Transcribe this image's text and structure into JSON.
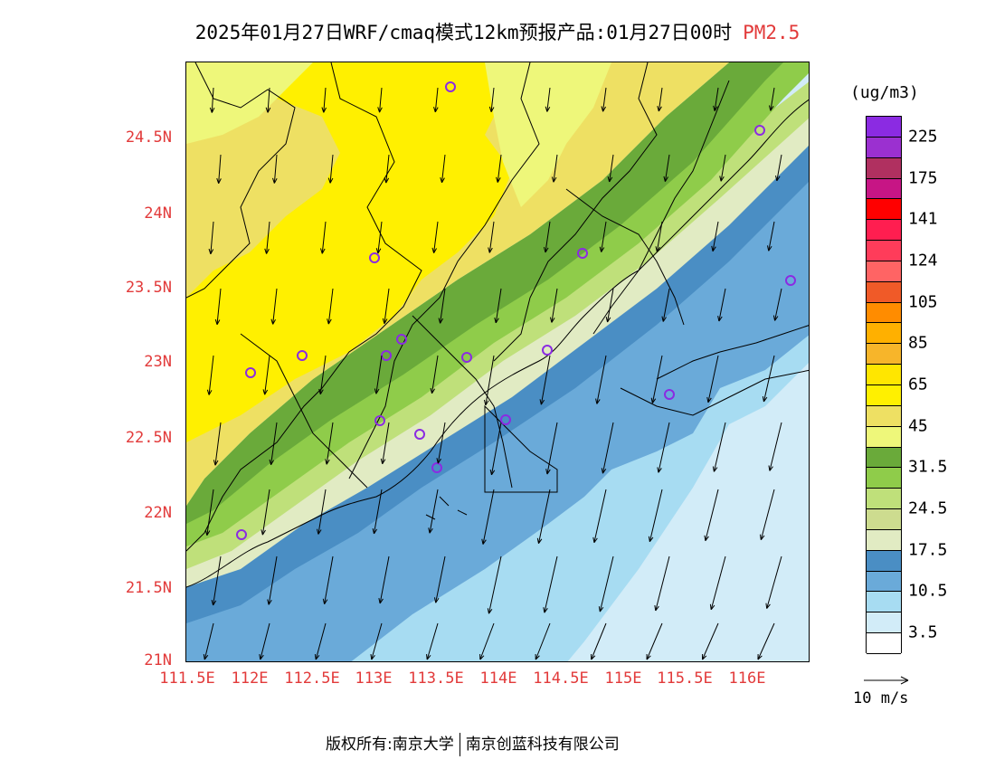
{
  "title": {
    "main": "2025年01月27日WRF/cmaq模式12km预报产品:01月27日00时",
    "pollutant": "PM2.5"
  },
  "axes": {
    "lat_labels": [
      "24.5N",
      "24N",
      "23.5N",
      "23N",
      "22.5N",
      "22N",
      "21.5N",
      "21N"
    ],
    "lon_labels": [
      "111.5E",
      "112E",
      "112.5E",
      "113E",
      "113.5E",
      "114E",
      "114.5E",
      "115E",
      "115.5E",
      "116E"
    ]
  },
  "colorbar": {
    "unit": "(ug/m3)",
    "colors": [
      "#8b2be2",
      "#9b30d0",
      "#b03060",
      "#c71585",
      "#ff0000",
      "#ff1e50",
      "#ff3c5a",
      "#ff6464",
      "#f05a28",
      "#ff8c00",
      "#ffb000",
      "#f7b52a",
      "#ffe600",
      "#fff000",
      "#eee063",
      "#eef77a",
      "#6aaa3a",
      "#8fcc4a",
      "#bfe07a",
      "#cddc8f",
      "#e1ebc3",
      "#4a8ec4",
      "#6aaad9",
      "#a7dcf2",
      "#d2ecf8",
      "#ffffff"
    ],
    "labels": [
      "225",
      "175",
      "141",
      "124",
      "105",
      "85",
      "65",
      "45",
      "31.5",
      "24.5",
      "17.5",
      "10.5",
      "3.5"
    ]
  },
  "wind_key": {
    "label": "10 m/s"
  },
  "footer": {
    "copyright": "版权所有:南京大学",
    "company": "南京创蓝科技有限公司"
  }
}
